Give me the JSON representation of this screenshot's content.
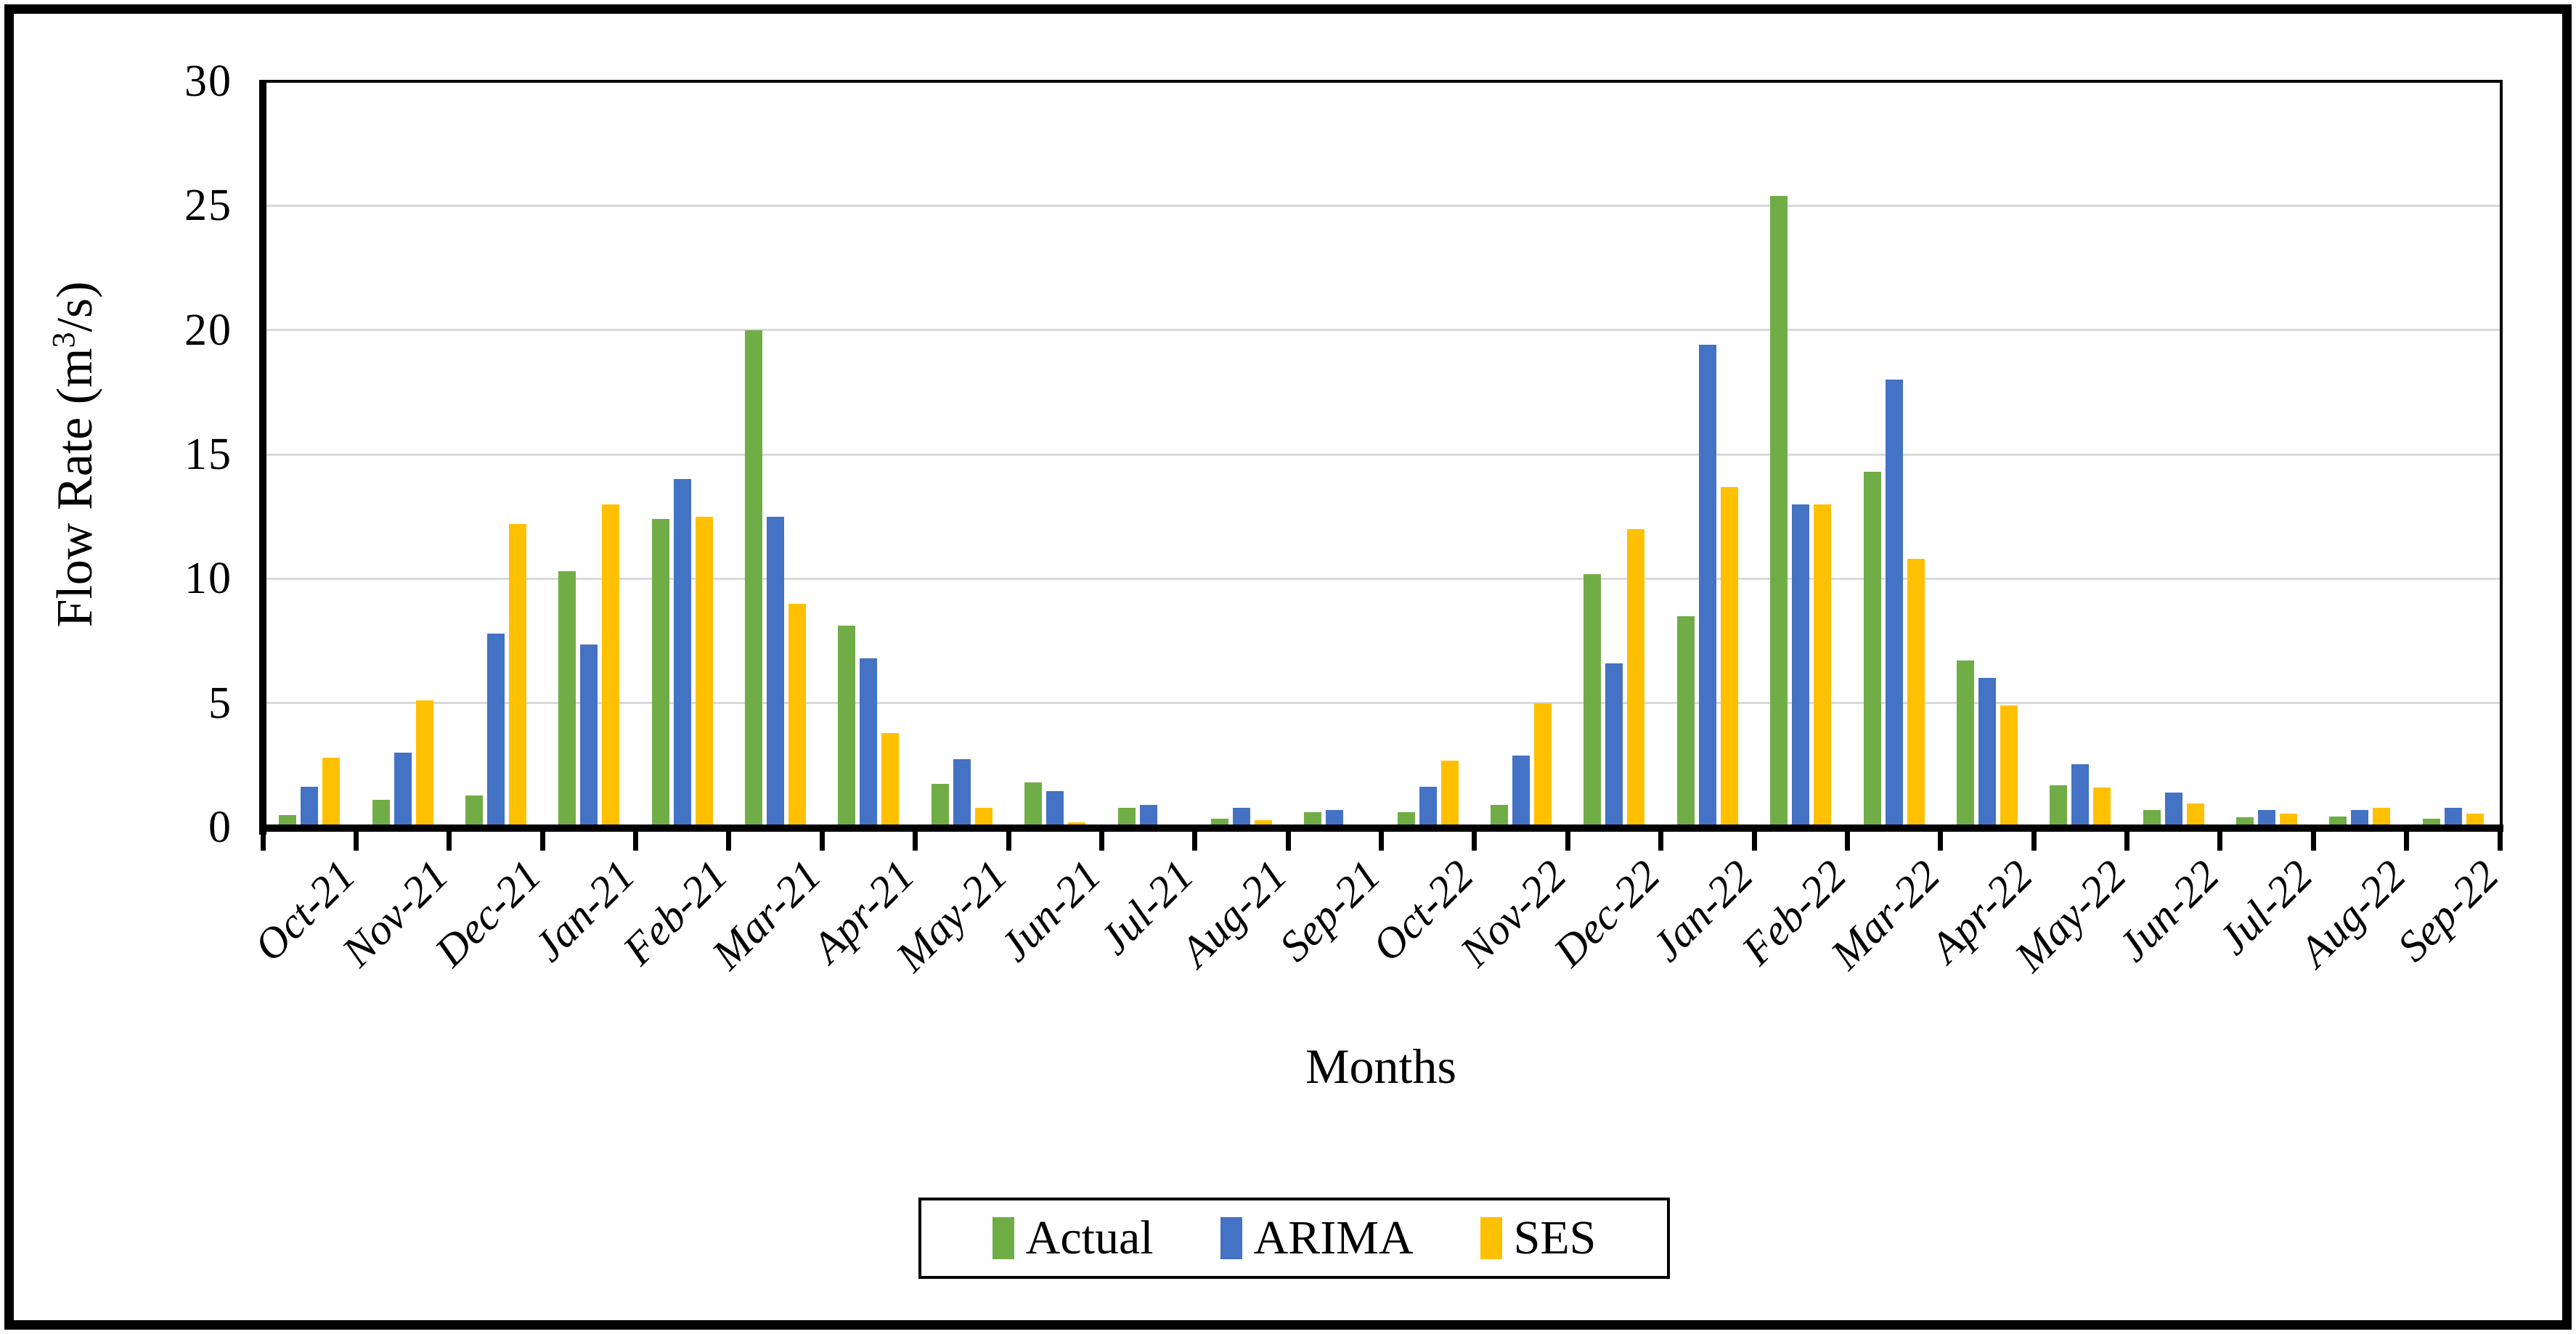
{
  "figure": {
    "background": "#ffffff",
    "frame_color": "#000000",
    "axis_color": "#000000",
    "gridline_color": "#d9d9d9"
  },
  "chart_data": {
    "type": "bar",
    "title": "",
    "xlabel": "Months",
    "ylabel": "Flow Rate (m3/s)",
    "ylabel_parts": {
      "pre": "Flow Rate (m",
      "sup": "3",
      "post": "/s)"
    },
    "ylim": [
      0,
      30
    ],
    "yticks": [
      0,
      5,
      10,
      15,
      20,
      25,
      30
    ],
    "grid": true,
    "legend_position": "bottom",
    "categories": [
      "Oct-21",
      "Nov-21",
      "Dec-21",
      "Jan-21",
      "Feb-21",
      "Mar-21",
      "Apr-21",
      "May-21",
      "Jun-21",
      "Jul-21",
      "Aug-21",
      "Sep-21",
      "Oct-22",
      "Nov-22",
      "Dec-22",
      "Jan-22",
      "Feb-22",
      "Mar-22",
      "Apr-22",
      "May-22",
      "Jun-22",
      "Jul-22",
      "Aug-22",
      "Sep-22"
    ],
    "series": [
      {
        "name": "Actual",
        "color": "#70AD47",
        "values": [
          0.5,
          1.1,
          1.3,
          10.3,
          12.4,
          20.0,
          8.1,
          1.75,
          1.8,
          0.8,
          0.35,
          0.6,
          0.6,
          0.9,
          10.2,
          8.5,
          25.4,
          14.3,
          6.7,
          1.7,
          0.7,
          0.4,
          0.45,
          0.35
        ]
      },
      {
        "name": "ARIMA",
        "color": "#4472C4",
        "values": [
          1.65,
          3.0,
          7.8,
          7.35,
          14.0,
          12.5,
          6.8,
          2.75,
          1.45,
          0.9,
          0.8,
          0.7,
          1.65,
          2.9,
          6.6,
          19.4,
          13.0,
          18.0,
          6.0,
          2.55,
          1.4,
          0.7,
          0.7,
          0.8
        ]
      },
      {
        "name": "SES",
        "color": "#FFC000",
        "values": [
          2.8,
          5.1,
          12.2,
          13.0,
          12.5,
          9.0,
          3.8,
          0.8,
          0.2,
          0.05,
          0.3,
          0.05,
          2.7,
          5.0,
          12.0,
          13.7,
          13.0,
          10.8,
          4.9,
          1.6,
          0.95,
          0.55,
          0.8,
          0.55
        ]
      }
    ]
  }
}
